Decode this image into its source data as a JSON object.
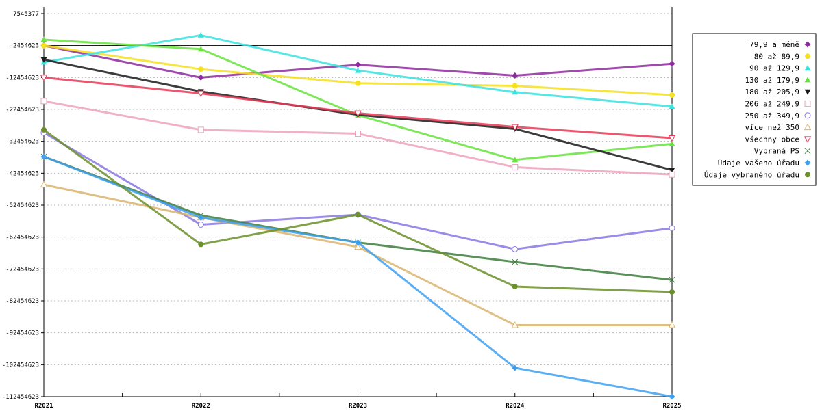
{
  "chart_data": {
    "type": "line",
    "title": "",
    "xlabel": "",
    "ylabel": "",
    "categories": [
      "R2021",
      "R2022",
      "R2023",
      "R2024",
      "R2025"
    ],
    "ylim": [
      -112454623,
      7545377
    ],
    "yticks": [
      7545377,
      -2454623,
      -12454623,
      -22454623,
      -32454623,
      -42454623,
      -52454623,
      -62454623,
      -72454623,
      -82454623,
      -92454623,
      -102454623,
      -112454623
    ],
    "grid": true,
    "legend_position": "right",
    "series": [
      {
        "name": "79,9 a méně",
        "color": "#8e2b9e",
        "marker": "diamond",
        "values": [
          -2454623,
          -12454623,
          -8454623,
          -11854623,
          -8154623
        ]
      },
      {
        "name": "80 až 89,9",
        "color": "#f5e020",
        "marker": "circle",
        "values": [
          -2454623,
          -9854623,
          -14254623,
          -15054623,
          -17954623
        ]
      },
      {
        "name": "90 až 129,9",
        "color": "#3ae2de",
        "marker": "triangle-up",
        "values": [
          -7654623,
          809377,
          -10254623,
          -17054623,
          -21554623
        ]
      },
      {
        "name": "130 až 179,9",
        "color": "#66e33c",
        "marker": "triangle-up",
        "values": [
          -604623,
          -3554623,
          -24254623,
          -38254623,
          -33254623
        ]
      },
      {
        "name": "180 až 205,9",
        "color": "#1a1a1a",
        "marker": "triangle-down",
        "values": [
          -6854623,
          -16854623,
          -24154623,
          -28554623,
          -41454623
        ]
      },
      {
        "name": "206 až 249,9",
        "color": "#eda3bd",
        "marker": "square",
        "values": [
          -19854623,
          -28854623,
          -30054623,
          -40554623,
          -42854623
        ]
      },
      {
        "name": "250 až 349,9",
        "color": "#8a78e2",
        "marker": "circle",
        "values": [
          -29754623,
          -58554623,
          -55454623,
          -66254623,
          -59654623
        ]
      },
      {
        "name": "více než 350",
        "color": "#d9b46e",
        "marker": "triangle-up",
        "values": [
          -46054623,
          -56354623,
          -65554623,
          -90054623,
          -90054623
        ]
      },
      {
        "name": "všechny obce",
        "color": "#e63956",
        "marker": "triangle-down",
        "values": [
          -12454623,
          -17454623,
          -23654623,
          -27954623,
          -31454623
        ]
      },
      {
        "name": "Vybraná PS",
        "color": "#3d7d3d",
        "marker": "cross",
        "values": [
          -37254623,
          -55654623,
          -64154623,
          -70254623,
          -75854623
        ]
      },
      {
        "name": "Údaje vašeho úřadu",
        "color": "#3ea0f0",
        "marker": "diamond",
        "values": [
          -37254623,
          -56354623,
          -64154623,
          -103454623,
          -112454623
        ]
      },
      {
        "name": "Údaje vybraného úřadu",
        "color": "#6b8f2a",
        "marker": "circle",
        "values": [
          -28854623,
          -64754623,
          -55454623,
          -77954623,
          -79654623
        ]
      }
    ]
  }
}
